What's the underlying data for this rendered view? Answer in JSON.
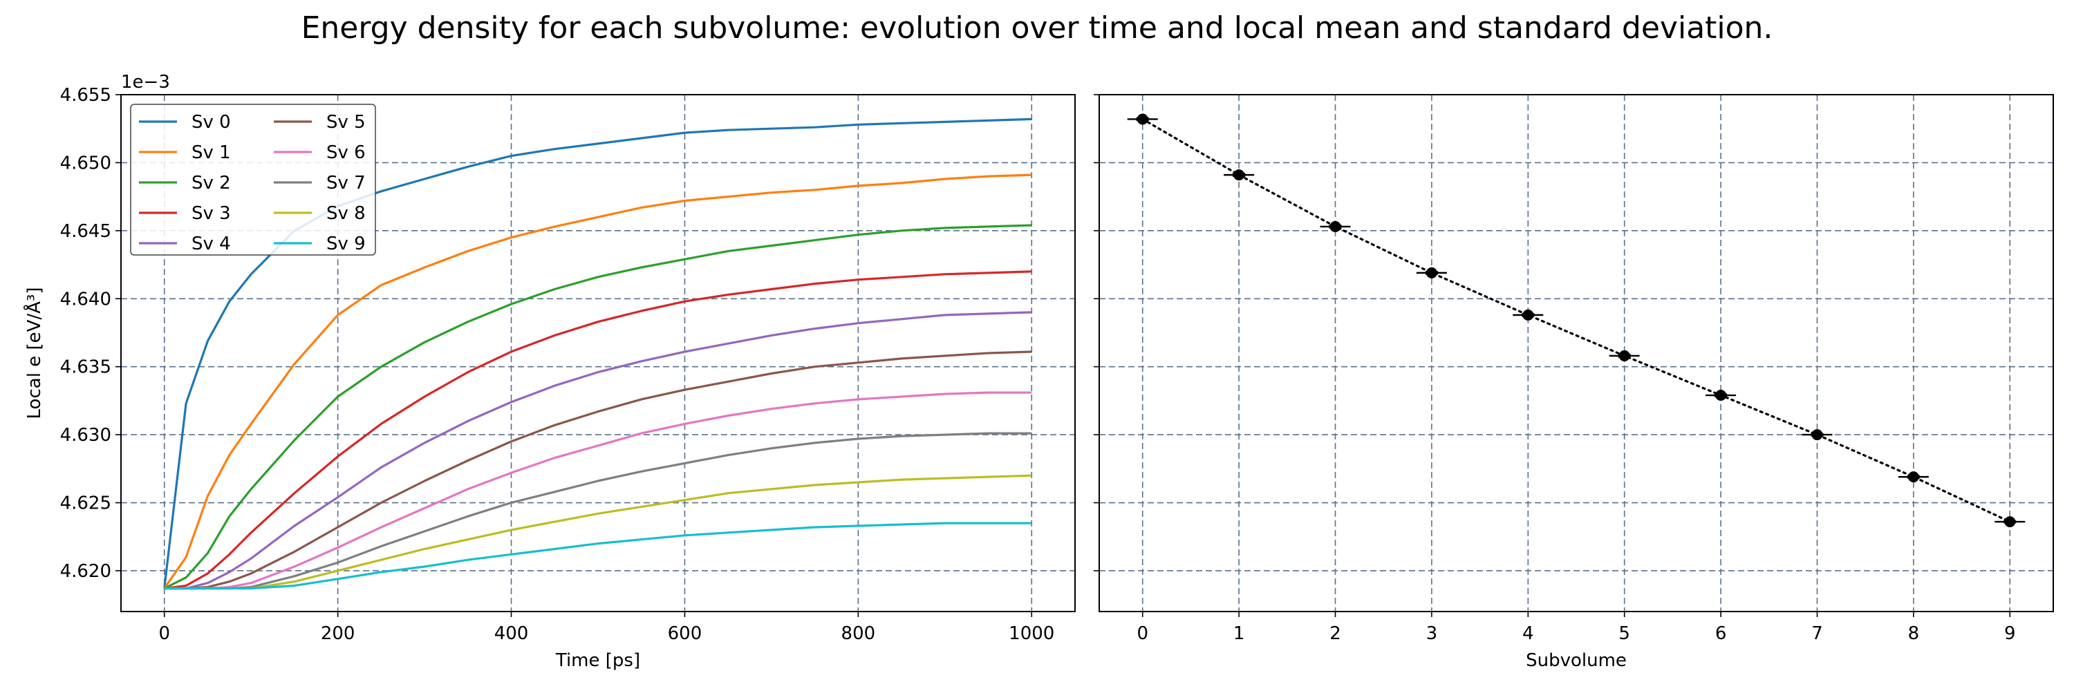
{
  "figure": {
    "title": "Energy density for each subvolume: evolution over time and local mean and standard deviation."
  },
  "chart_data": [
    {
      "type": "line",
      "xlabel": "Time [ps]",
      "ylabel": "Local e [eV/Å³]",
      "offset_text": "1e−3",
      "xlim": [
        -50,
        1050
      ],
      "ylim": [
        4.617,
        4.655
      ],
      "xticks": [
        0,
        200,
        400,
        600,
        800,
        1000
      ],
      "xtick_labels": [
        "0",
        "200",
        "400",
        "600",
        "800",
        "1000"
      ],
      "yticks": [
        4.62,
        4.625,
        4.63,
        4.635,
        4.64,
        4.645,
        4.65,
        4.655
      ],
      "ytick_labels": [
        "4.620",
        "4.625",
        "4.630",
        "4.635",
        "4.640",
        "4.645",
        "4.650",
        "4.655"
      ],
      "grid": true,
      "legend": {
        "placement": "top-left",
        "columns": 2
      },
      "x": [
        0,
        25,
        50,
        75,
        100,
        150,
        200,
        250,
        300,
        350,
        400,
        450,
        500,
        550,
        600,
        650,
        700,
        750,
        800,
        850,
        900,
        950,
        1000
      ],
      "series": [
        {
          "name": "Sv 0",
          "color": "#1f77b4",
          "values": [
            4.6187,
            4.6323,
            4.6369,
            4.6398,
            4.6418,
            4.645,
            4.6468,
            4.6479,
            4.6488,
            4.6497,
            4.6505,
            4.651,
            4.6514,
            4.6518,
            4.6522,
            4.6524,
            4.6525,
            4.6526,
            4.6528,
            4.6529,
            4.653,
            4.6531,
            4.6532
          ]
        },
        {
          "name": "Sv 1",
          "color": "#ff7f0e",
          "values": [
            4.6187,
            4.621,
            4.6255,
            4.6285,
            4.6308,
            4.6352,
            4.6388,
            4.641,
            4.6423,
            4.6435,
            4.6445,
            4.6453,
            4.646,
            4.6467,
            4.6472,
            4.6475,
            4.6478,
            4.648,
            4.6483,
            4.6485,
            4.6488,
            4.649,
            4.6491
          ]
        },
        {
          "name": "Sv 2",
          "color": "#2ca02c",
          "values": [
            4.6187,
            4.6195,
            4.6213,
            4.624,
            4.626,
            4.6296,
            4.6328,
            4.635,
            4.6368,
            4.6383,
            4.6396,
            4.6407,
            4.6416,
            4.6423,
            4.6429,
            4.6435,
            4.6439,
            4.6443,
            4.6447,
            4.645,
            4.6452,
            4.6453,
            4.6454
          ]
        },
        {
          "name": "Sv 3",
          "color": "#d62728",
          "values": [
            4.6187,
            4.6189,
            4.6198,
            4.6212,
            4.6228,
            4.6257,
            4.6284,
            4.6308,
            4.6328,
            4.6346,
            4.6361,
            4.6373,
            4.6383,
            4.6391,
            4.6398,
            4.6403,
            4.6407,
            4.6411,
            4.6414,
            4.6416,
            4.6418,
            4.6419,
            4.642
          ]
        },
        {
          "name": "Sv 4",
          "color": "#9467bd",
          "values": [
            4.6187,
            4.6187,
            4.6191,
            4.6199,
            4.6209,
            4.6233,
            4.6254,
            4.6276,
            4.6294,
            4.631,
            4.6324,
            4.6336,
            4.6346,
            4.6354,
            4.6361,
            4.6367,
            4.6373,
            4.6378,
            4.6382,
            4.6385,
            4.6388,
            4.6389,
            4.639
          ]
        },
        {
          "name": "Sv 5",
          "color": "#8c564b",
          "values": [
            4.6187,
            4.6187,
            4.6188,
            4.6192,
            4.6198,
            4.6214,
            4.6232,
            4.625,
            4.6266,
            4.6281,
            4.6295,
            4.6307,
            4.6317,
            4.6326,
            4.6333,
            4.6339,
            4.6345,
            4.635,
            4.6353,
            4.6356,
            4.6358,
            4.636,
            4.6361
          ]
        },
        {
          "name": "Sv 6",
          "color": "#e377c2",
          "values": [
            4.6187,
            4.6187,
            4.6187,
            4.6188,
            4.6191,
            4.6203,
            4.6217,
            4.6232,
            4.6246,
            4.626,
            4.6272,
            4.6283,
            4.6292,
            4.6301,
            4.6308,
            4.6314,
            4.6319,
            4.6323,
            4.6326,
            4.6328,
            4.633,
            4.6331,
            4.6331
          ]
        },
        {
          "name": "Sv 7",
          "color": "#7f7f7f",
          "values": [
            4.6187,
            4.6187,
            4.6187,
            4.6187,
            4.6188,
            4.6196,
            4.6206,
            4.6218,
            4.6229,
            4.624,
            4.625,
            4.6258,
            4.6266,
            4.6273,
            4.6279,
            4.6285,
            4.629,
            4.6294,
            4.6297,
            4.6299,
            4.63,
            4.6301,
            4.6301
          ]
        },
        {
          "name": "Sv 8",
          "color": "#bcbd22",
          "values": [
            4.6187,
            4.6187,
            4.6187,
            4.6187,
            4.6187,
            4.6192,
            4.62,
            4.6208,
            4.6216,
            4.6223,
            4.623,
            4.6236,
            4.6242,
            4.6247,
            4.6252,
            4.6257,
            4.626,
            4.6263,
            4.6265,
            4.6267,
            4.6268,
            4.6269,
            4.627
          ]
        },
        {
          "name": "Sv 9",
          "color": "#17becf",
          "values": [
            4.6187,
            4.6187,
            4.6187,
            4.6187,
            4.6187,
            4.6189,
            4.6194,
            4.6199,
            4.6203,
            4.6208,
            4.6212,
            4.6216,
            4.622,
            4.6223,
            4.6226,
            4.6228,
            4.623,
            4.6232,
            4.6233,
            4.6234,
            4.6235,
            4.6235,
            4.6235
          ]
        }
      ]
    },
    {
      "type": "scatter",
      "xlabel": "Subvolume",
      "xlim": [
        -0.45,
        9.45
      ],
      "ylim": [
        4.617,
        4.655
      ],
      "xticks": [
        0,
        1,
        2,
        3,
        4,
        5,
        6,
        7,
        8,
        9
      ],
      "xtick_labels": [
        "0",
        "1",
        "2",
        "3",
        "4",
        "5",
        "6",
        "7",
        "8",
        "9"
      ],
      "yticks": [
        4.62,
        4.625,
        4.63,
        4.635,
        4.64,
        4.645,
        4.65,
        4.655
      ],
      "grid": true,
      "line_style": "dotted",
      "marker_color": "#000000",
      "x": [
        0,
        1,
        2,
        3,
        4,
        5,
        6,
        7,
        8,
        9
      ],
      "mean": [
        4.6532,
        4.6491,
        4.6453,
        4.6419,
        4.6388,
        4.6358,
        4.6329,
        4.63,
        4.6269,
        4.6236
      ],
      "std": [
        8e-05,
        9e-05,
        8e-05,
        8e-05,
        8e-05,
        8e-05,
        8e-05,
        7e-05,
        7e-05,
        6e-05
      ]
    }
  ]
}
